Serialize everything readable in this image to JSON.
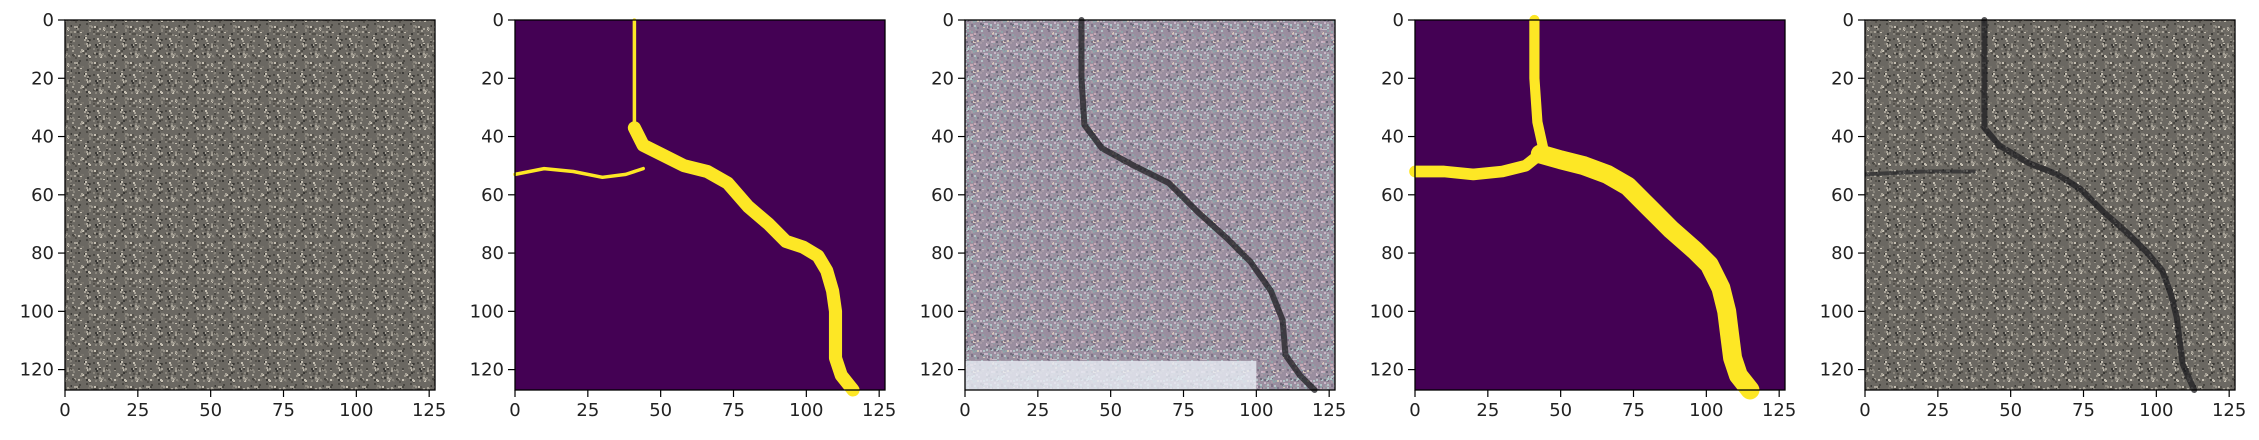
{
  "chart_data": [
    {
      "type": "image",
      "panel": "input-photo",
      "render": "pavement-photo",
      "xlim": [
        0,
        127
      ],
      "ylim": [
        127,
        0
      ],
      "xticks": [
        0,
        25,
        50,
        75,
        100,
        125
      ],
      "yticks": [
        0,
        20,
        40,
        60,
        80,
        100,
        120
      ],
      "crack_path": []
    },
    {
      "type": "image",
      "panel": "ground-truth-mask",
      "render": "mask",
      "background_color": "#440154",
      "mask_color": "#fde725",
      "xlim": [
        0,
        127
      ],
      "ylim": [
        127,
        0
      ],
      "xticks": [
        0,
        25,
        50,
        75,
        100,
        125
      ],
      "yticks": [
        0,
        20,
        40,
        60,
        80,
        100,
        120
      ],
      "branches": [
        {
          "width": 1.2,
          "points": [
            [
              41,
              0
            ],
            [
              41,
              20
            ],
            [
              41,
              36
            ]
          ]
        },
        {
          "width": 1.2,
          "points": [
            [
              0,
              53
            ],
            [
              10,
              51
            ],
            [
              20,
              52
            ],
            [
              30,
              54
            ],
            [
              38,
              53
            ],
            [
              44,
              51
            ]
          ]
        },
        {
          "width": 4.5,
          "points": [
            [
              41,
              37
            ],
            [
              44,
              43
            ],
            [
              50,
              46
            ],
            [
              58,
              50
            ],
            [
              66,
              52
            ],
            [
              73,
              56
            ],
            [
              80,
              64
            ],
            [
              87,
              70
            ],
            [
              93,
              76
            ],
            [
              99,
              78
            ],
            [
              104,
              81
            ],
            [
              107,
              86
            ],
            [
              109,
              93
            ],
            [
              110,
              100
            ],
            [
              110,
              108
            ],
            [
              110,
              116
            ],
            [
              112,
              122
            ],
            [
              116,
              127
            ]
          ]
        }
      ]
    },
    {
      "type": "image",
      "panel": "generated-texture",
      "render": "noisy-texture",
      "xlim": [
        0,
        127
      ],
      "ylim": [
        127,
        0
      ],
      "xticks": [
        0,
        25,
        50,
        75,
        100,
        125
      ],
      "yticks": [
        0,
        20,
        40,
        60,
        80,
        100,
        120
      ],
      "crack_path": [
        [
          40,
          0
        ],
        [
          40,
          20
        ],
        [
          41,
          36
        ],
        [
          47,
          44
        ],
        [
          58,
          50
        ],
        [
          70,
          56
        ],
        [
          80,
          66
        ],
        [
          90,
          75
        ],
        [
          98,
          83
        ],
        [
          105,
          93
        ],
        [
          109,
          103
        ],
        [
          110,
          115
        ],
        [
          115,
          122
        ],
        [
          120,
          127
        ]
      ]
    },
    {
      "type": "image",
      "panel": "predicted-mask",
      "render": "mask",
      "background_color": "#440154",
      "mask_color": "#fde725",
      "xlim": [
        0,
        127
      ],
      "ylim": [
        127,
        0
      ],
      "xticks": [
        0,
        25,
        50,
        75,
        100,
        125
      ],
      "yticks": [
        0,
        20,
        40,
        60,
        80,
        100,
        120
      ],
      "branches": [
        {
          "width": 3.5,
          "points": [
            [
              41,
              0
            ],
            [
              41,
              20
            ],
            [
              42,
              35
            ],
            [
              44,
              44
            ]
          ]
        },
        {
          "width": 4,
          "points": [
            [
              0,
              52
            ],
            [
              10,
              52
            ],
            [
              20,
              53
            ],
            [
              30,
              52
            ],
            [
              38,
              50
            ],
            [
              43,
              46
            ]
          ]
        },
        {
          "width": 6.5,
          "points": [
            [
              43,
              46
            ],
            [
              50,
              48
            ],
            [
              58,
              50
            ],
            [
              66,
              53
            ],
            [
              73,
              57
            ],
            [
              80,
              64
            ],
            [
              88,
              72
            ],
            [
              96,
              79
            ],
            [
              101,
              84
            ],
            [
              105,
              92
            ],
            [
              107,
              100
            ],
            [
              108,
              108
            ],
            [
              109,
              116
            ],
            [
              111,
              122
            ],
            [
              115,
              127
            ]
          ]
        }
      ]
    },
    {
      "type": "image",
      "panel": "overlay-photo",
      "render": "pavement-photo",
      "xlim": [
        0,
        127
      ],
      "ylim": [
        127,
        0
      ],
      "xticks": [
        0,
        25,
        50,
        75,
        100,
        125
      ],
      "yticks": [
        0,
        20,
        40,
        60,
        80,
        100,
        120
      ],
      "crack_path": [
        [
          41,
          0
        ],
        [
          41,
          20
        ],
        [
          41,
          37
        ],
        [
          46,
          43
        ],
        [
          56,
          49
        ],
        [
          66,
          53
        ],
        [
          74,
          58
        ],
        [
          82,
          66
        ],
        [
          90,
          73
        ],
        [
          97,
          80
        ],
        [
          102,
          86
        ],
        [
          105,
          94
        ],
        [
          107,
          102
        ],
        [
          108,
          110
        ],
        [
          109,
          118
        ],
        [
          113,
          127
        ]
      ]
    }
  ]
}
